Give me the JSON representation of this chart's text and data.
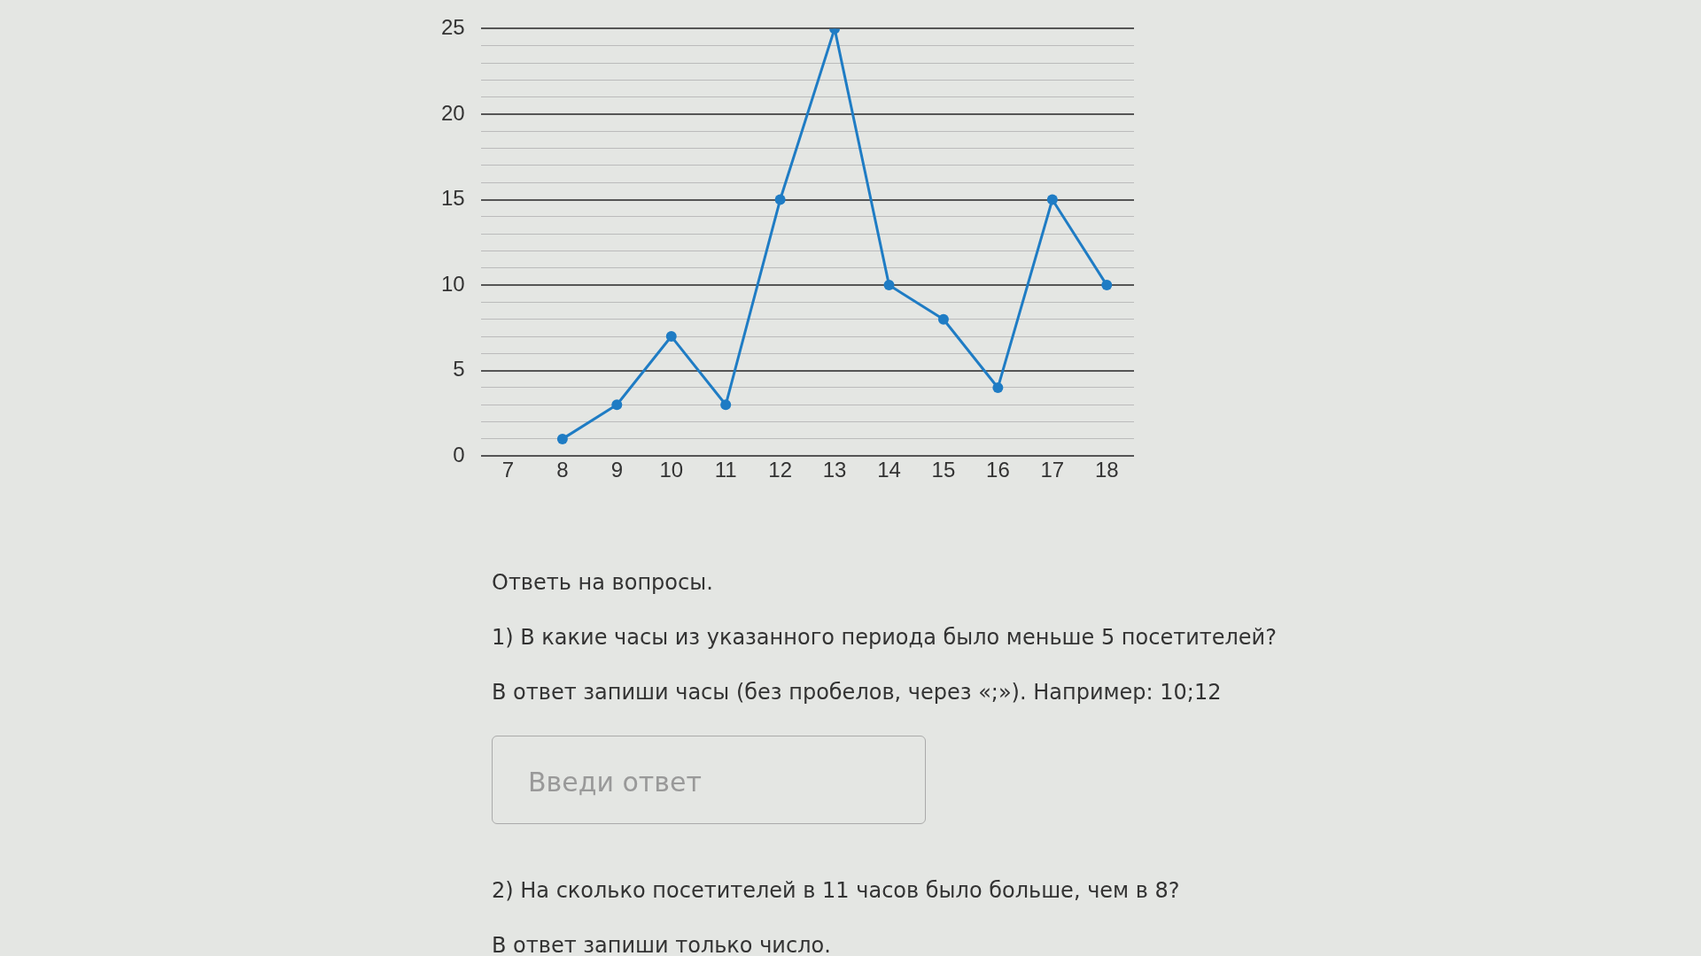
{
  "chart_data": {
    "type": "line",
    "categories": [
      "7",
      "8",
      "9",
      "10",
      "11",
      "12",
      "13",
      "14",
      "15",
      "16",
      "17",
      "18"
    ],
    "series": [
      {
        "color": "#1f7cc4",
        "values": [
          null,
          1,
          3,
          7,
          3,
          15,
          25,
          10,
          8,
          4,
          15,
          10
        ]
      }
    ],
    "ylim": [
      0,
      25
    ],
    "yticks": [
      0,
      {
        "value": 1,
        "label": null
      },
      {
        "value": 2,
        "label": null
      },
      {
        "value": 3,
        "label": null
      },
      {
        "value": 4,
        "label": null
      },
      5,
      {
        "value": 6,
        "label": null
      },
      {
        "value": 7,
        "label": null
      },
      {
        "value": 8,
        "label": null
      },
      {
        "value": 9,
        "label": null
      },
      10,
      {
        "value": 11,
        "label": null
      },
      {
        "value": 12,
        "label": null
      },
      {
        "value": 13,
        "label": null
      },
      {
        "value": 14,
        "label": null
      },
      15,
      {
        "value": 16,
        "label": null
      },
      {
        "value": 17,
        "label": null
      },
      {
        "value": 18,
        "label": null
      },
      {
        "value": 19,
        "label": null
      },
      20,
      {
        "value": 21,
        "label": null
      },
      {
        "value": 22,
        "label": null
      },
      {
        "value": 23,
        "label": null
      },
      {
        "value": 24,
        "label": null
      },
      25
    ],
    "grid": "y",
    "marker": "circle",
    "line_style": "solid",
    "legend": false,
    "annotations": [
      "Ответь на вопросы.",
      "1) В какие часы из указанного периода было меньше 5 посетителей?",
      "В ответ запиши часы (без пробелов, через «;»). Например: 10;12",
      "Введи ответ",
      "2) На сколько посетителей в 11 часов было больше, чем в 8?",
      "В ответ запиши только число."
    ]
  }
}
